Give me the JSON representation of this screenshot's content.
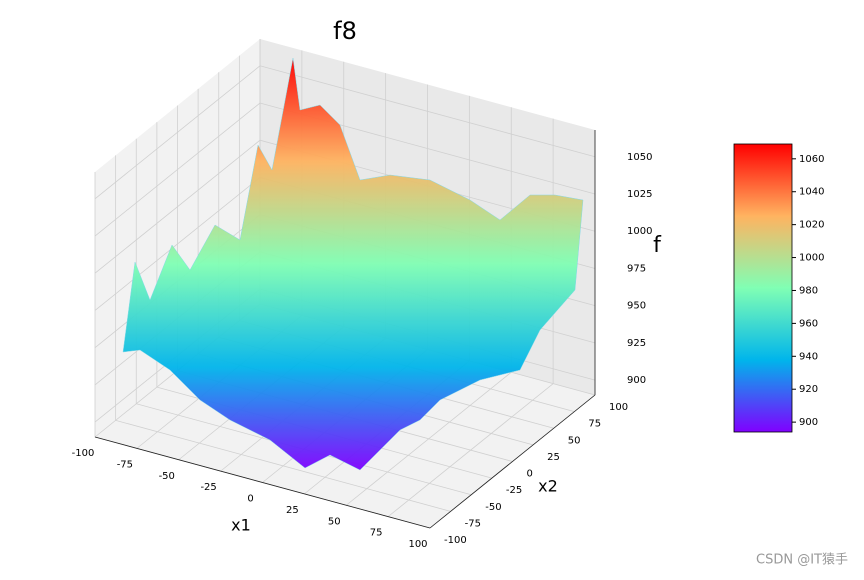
{
  "chart_data": {
    "type": "surface3d",
    "title": "f8",
    "xlabel": "x1",
    "ylabel": "x2",
    "zlabel": "f",
    "xlim": [
      -100,
      100
    ],
    "xticks": [
      -100,
      -75,
      -50,
      -25,
      0,
      25,
      50,
      75,
      100
    ],
    "ylim": [
      -100,
      100
    ],
    "yticks": [
      -100,
      -75,
      -50,
      -25,
      0,
      25,
      50,
      75,
      100
    ],
    "zlim": [
      890,
      1068
    ],
    "zticks": [
      900,
      925,
      950,
      975,
      1000,
      1025,
      1050
    ],
    "colormap": [
      "#8000ff",
      "#00b5eb",
      "#80ffb4",
      "#ffb360",
      "#ff0000"
    ],
    "colorbar_lim": [
      894,
      1069
    ],
    "colorbar_ticks": [
      900,
      920,
      940,
      960,
      980,
      1000,
      1020,
      1040,
      1060
    ],
    "grid": true
  },
  "watermark": "CSDN @IT猿手"
}
